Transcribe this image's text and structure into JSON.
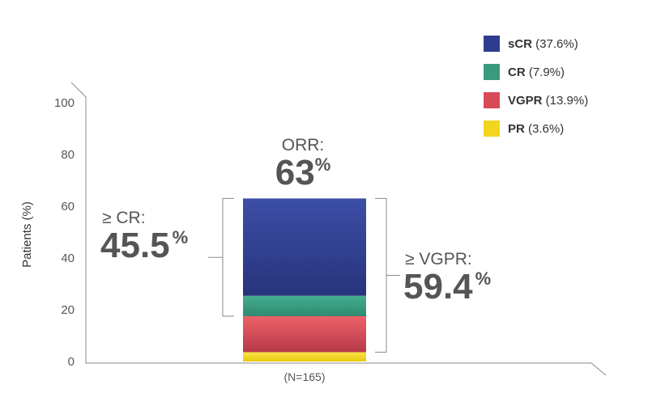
{
  "chart_data": {
    "type": "bar",
    "stacked": true,
    "categories": [
      "(N=165)"
    ],
    "ylabel": "Patients (%)",
    "ylim": [
      0,
      100
    ],
    "yticks": [
      0,
      20,
      40,
      60,
      80,
      100
    ],
    "grid": false,
    "legend_position": "top-right",
    "series": [
      {
        "key": "PR",
        "name": "PR",
        "legend_value": "(3.6%)",
        "values": [
          3.6
        ],
        "color": "#f2d51e"
      },
      {
        "key": "VGPR",
        "name": "VGPR",
        "legend_value": "(13.9%)",
        "values": [
          13.9
        ],
        "color": "#d84a57"
      },
      {
        "key": "CR",
        "name": "CR",
        "legend_value": "(7.9%)",
        "values": [
          7.9
        ],
        "color": "#3a9a80"
      },
      {
        "key": "sCR",
        "name": "sCR",
        "legend_value": "(37.6%)",
        "values": [
          37.6
        ],
        "color": "#2e3c8f"
      }
    ],
    "legend_order": [
      "sCR",
      "CR",
      "VGPR",
      "PR"
    ],
    "annotations": {
      "orr": {
        "label": "ORR:",
        "value": "63",
        "unit": "%"
      },
      "cr_plus": {
        "label": "≥ CR:",
        "value": "45.5",
        "unit": "%"
      },
      "vgpr_plus": {
        "label": "≥ VGPR:",
        "value": "59.4",
        "unit": "%"
      }
    }
  }
}
